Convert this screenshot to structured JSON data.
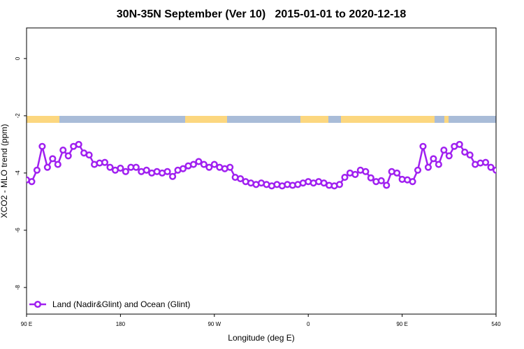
{
  "chart_data": {
    "type": "line",
    "title": "30N-35N September (Ver 10)   2015-01-01 to 2020-12-18",
    "xlabel": "Longitude (deg E)",
    "ylabel": "XCO2 - MLO trend (ppm)",
    "xlim": [
      90,
      540
    ],
    "xticks": [
      {
        "value": 90,
        "label": "90 E"
      },
      180,
      {
        "value": 270,
        "label": "90 W"
      },
      {
        "value": 360,
        "label": "0"
      },
      {
        "value": 450,
        "label": "90 E"
      },
      540
    ],
    "ylim": [
      -8.93,
      1.07
    ],
    "yticks": [
      -8,
      -6,
      -4,
      -2,
      0
    ],
    "legend": "bottom-left",
    "x": [
      90,
      95,
      100,
      105,
      110,
      115,
      120,
      125,
      130,
      135,
      140,
      145,
      150,
      155,
      160,
      165,
      170,
      175,
      180,
      185,
      190,
      195,
      200,
      205,
      210,
      215,
      220,
      225,
      230,
      235,
      240,
      245,
      250,
      255,
      260,
      265,
      270,
      275,
      280,
      285,
      290,
      295,
      300,
      305,
      310,
      315,
      320,
      325,
      330,
      335,
      340,
      345,
      350,
      355,
      360,
      365,
      370,
      375,
      380,
      385,
      390,
      395,
      400,
      405,
      410,
      415,
      420,
      425,
      430,
      435,
      440,
      445,
      450,
      455,
      460,
      465,
      470,
      475,
      480,
      485,
      490,
      495,
      500,
      505,
      510,
      515,
      520,
      525,
      530,
      535,
      540
    ],
    "series": [
      {
        "name": "Land (Nadir&Glint) and Ocean (Glint)",
        "color": "#a020f0",
        "values": [
          -4.24,
          -4.3,
          -3.9,
          -3.07,
          -3.8,
          -3.5,
          -3.7,
          -3.2,
          -3.4,
          -3.07,
          -3.0,
          -3.3,
          -3.37,
          -3.7,
          -3.65,
          -3.63,
          -3.8,
          -3.9,
          -3.83,
          -3.95,
          -3.8,
          -3.8,
          -3.95,
          -3.9,
          -4.0,
          -3.95,
          -4.0,
          -3.95,
          -4.12,
          -3.9,
          -3.85,
          -3.75,
          -3.7,
          -3.6,
          -3.7,
          -3.8,
          -3.7,
          -3.8,
          -3.85,
          -3.8,
          -4.15,
          -4.2,
          -4.3,
          -4.35,
          -4.4,
          -4.35,
          -4.4,
          -4.45,
          -4.4,
          -4.45,
          -4.4,
          -4.43,
          -4.4,
          -4.35,
          -4.3,
          -4.35,
          -4.3,
          -4.35,
          -4.43,
          -4.45,
          -4.4,
          -4.15,
          -4.0,
          -4.05,
          -3.9,
          -3.95,
          -4.17,
          -4.3,
          -4.27,
          -4.43,
          -3.95,
          -4.0,
          -4.22,
          -4.24,
          -4.3,
          -3.9,
          -3.07,
          -3.8,
          -3.5,
          -3.7,
          -3.2,
          -3.4,
          -3.07,
          -3.0,
          -3.27,
          -3.37,
          -3.7,
          -3.65,
          -3.63,
          -3.8,
          -3.9
        ]
      }
    ]
  }
}
